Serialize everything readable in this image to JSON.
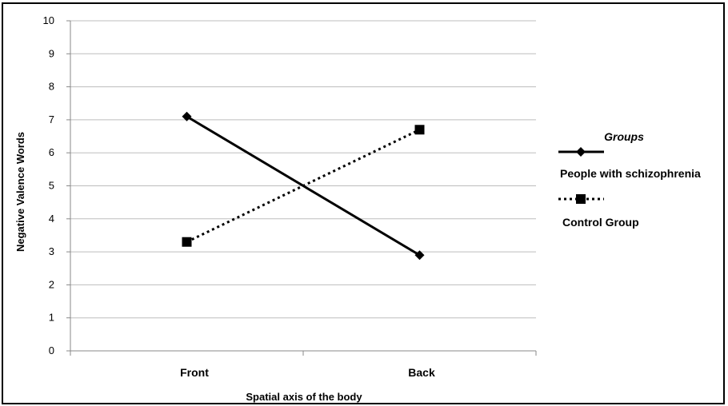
{
  "chart_data": {
    "type": "line",
    "categories": [
      "Front",
      "Back"
    ],
    "ylim": [
      0,
      10
    ],
    "yticks": [
      0,
      1,
      2,
      3,
      4,
      5,
      6,
      7,
      8,
      9,
      10
    ],
    "xlabel": "Spatial axis of the body",
    "ylabel": "Negative Valence Words",
    "grid": "horizontal",
    "legend": {
      "title": "Groups",
      "placement": "right"
    },
    "series": [
      {
        "name": "People with schizophrenia",
        "values": [
          7.1,
          2.9
        ],
        "style": "solid",
        "marker": "diamond",
        "color": "#000000"
      },
      {
        "name": "Control Group",
        "values": [
          3.3,
          6.7
        ],
        "style": "dotted",
        "marker": "square",
        "color": "#000000"
      }
    ]
  }
}
